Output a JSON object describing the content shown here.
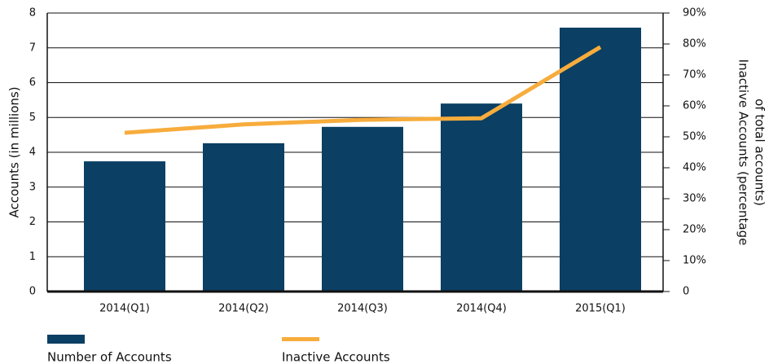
{
  "chart_data": {
    "type": "bar",
    "categories": [
      "2014(Q1)",
      "2014(Q2)",
      "2014(Q3)",
      "2014(Q4)",
      "2015(Q1)"
    ],
    "ylabel": "Accounts (in millions)",
    "y2label_lines": [
      "Inactive Accounts (percentage",
      "of total accounts)"
    ],
    "ylim": [
      0,
      8
    ],
    "yticks": [
      0,
      1,
      2,
      3,
      4,
      5,
      6,
      7,
      8
    ],
    "y2lim": [
      0,
      90
    ],
    "y2ticks": [
      {
        "value": 0,
        "label": "0"
      },
      {
        "value": 10,
        "label": "10%"
      },
      {
        "value": 20,
        "label": "20%"
      },
      {
        "value": 30,
        "label": "30%"
      },
      {
        "value": 40,
        "label": "40%"
      },
      {
        "value": 50,
        "label": "50%"
      },
      {
        "value": 60,
        "label": "60%"
      },
      {
        "value": 70,
        "label": "70%"
      },
      {
        "value": 80,
        "label": "80%"
      },
      {
        "value": 90,
        "label": "90%"
      }
    ],
    "grid": true,
    "series": [
      {
        "name": "Number of Accounts",
        "type": "bar",
        "color": "#0b3f63",
        "values": [
          3.74,
          4.26,
          4.73,
          5.4,
          7.58
        ]
      },
      {
        "name": "Inactive Accounts",
        "type": "line",
        "axis": "y2",
        "color": "#f7ac3c",
        "values": [
          51.3,
          54,
          55.5,
          56,
          79
        ]
      }
    ]
  }
}
